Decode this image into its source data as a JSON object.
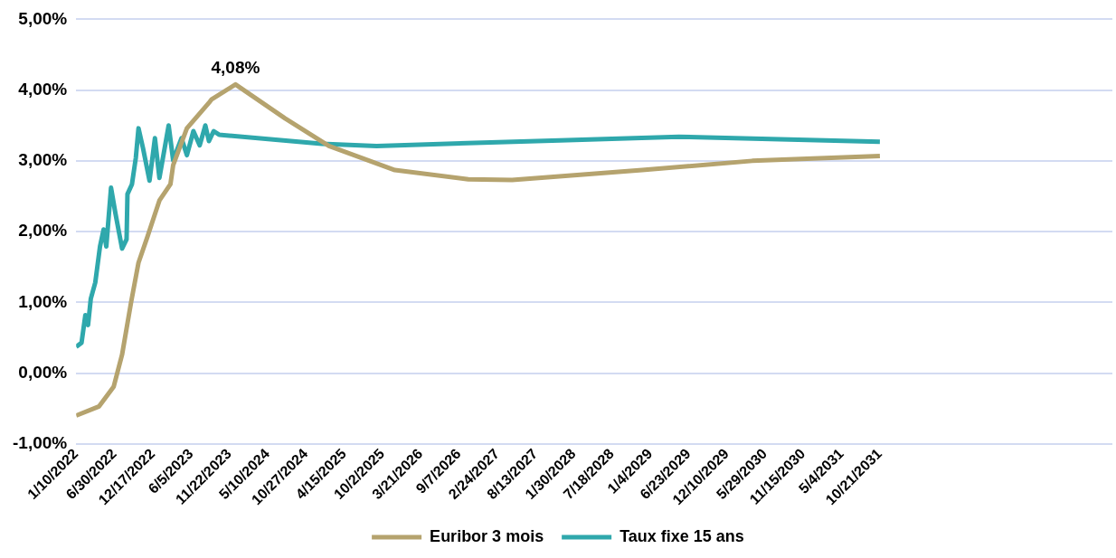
{
  "chart_data": {
    "type": "line",
    "x": [
      "2022-01-10",
      "2022-02-03",
      "2022-02-20",
      "2022-03-04",
      "2022-03-16",
      "2022-04-05",
      "2022-04-26",
      "2022-05-12",
      "2022-05-24",
      "2022-06-14",
      "2022-07-04",
      "2022-08-02",
      "2022-08-22",
      "2022-08-26",
      "2022-09-15",
      "2022-10-02",
      "2022-10-14",
      "2022-11-03",
      "2022-12-02",
      "2022-12-26",
      "2023-01-15",
      "2023-02-25",
      "2023-03-17",
      "2023-04-23",
      "2023-05-17",
      "2023-06-15",
      "2023-07-13",
      "2023-08-07",
      "2023-08-23",
      "2023-09-13",
      "2023-10-07",
      "2025-01-05",
      "2025-09-06",
      "2027-11-29",
      "2029-05-11",
      "2031-10-21"
    ],
    "series": [
      {
        "name": "Euribor 3 mois",
        "color": "#b5a36e",
        "x": [
          "2022-01-10",
          "2022-04-22",
          "2022-06-26",
          "2022-08-02",
          "2022-09-11",
          "2022-10-14",
          "2022-11-23",
          "2023-01-15",
          "2023-03-05",
          "2023-03-17",
          "2023-05-17",
          "2023-08-23",
          "2023-09-04",
          "2023-12-19",
          "2024-07-26",
          "2025-02-06",
          "2025-11-26",
          "2026-10-18",
          "2027-05-01",
          "2028-11-29",
          "2030-04-02",
          "2031-10-21"
        ],
        "values": [
          -0.6,
          -0.47,
          -0.19,
          0.26,
          1.0,
          1.56,
          1.93,
          2.44,
          2.67,
          2.94,
          3.46,
          3.82,
          3.87,
          4.08,
          3.6,
          3.21,
          2.87,
          2.74,
          2.73,
          2.87,
          3.0,
          3.07
        ]
      },
      {
        "name": "Taux fixe 15 ans",
        "color": "#2fa8ac",
        "values": [
          0.37,
          0.43,
          0.82,
          0.68,
          1.05,
          1.28,
          1.79,
          2.03,
          1.79,
          2.62,
          2.25,
          1.76,
          1.89,
          2.53,
          2.67,
          3.04,
          3.46,
          3.18,
          2.72,
          3.32,
          2.76,
          3.5,
          3.01,
          3.32,
          3.08,
          3.42,
          3.22,
          3.5,
          3.28,
          3.42,
          3.37,
          3.24,
          3.21,
          3.29,
          3.34,
          3.27
        ]
      }
    ],
    "annotations": [
      {
        "text": "4,08%",
        "x": "2023-12-19",
        "y": 4.08
      }
    ],
    "xlim": [
      "2022-01-10",
      "2034-08-19"
    ],
    "xticks": [
      {
        "value": "2022-01-10",
        "label": "1/10/2022"
      },
      {
        "value": "2022-06-30",
        "label": "6/30/2022"
      },
      {
        "value": "2022-12-17",
        "label": "12/17/2022"
      },
      {
        "value": "2023-06-05",
        "label": "6/5/2023"
      },
      {
        "value": "2023-11-22",
        "label": "11/22/2023"
      },
      {
        "value": "2024-05-10",
        "label": "5/10/2024"
      },
      {
        "value": "2024-10-27",
        "label": "10/27/2024"
      },
      {
        "value": "2025-04-15",
        "label": "4/15/2025"
      },
      {
        "value": "2025-10-02",
        "label": "10/2/2025"
      },
      {
        "value": "2026-03-21",
        "label": "3/21/2026"
      },
      {
        "value": "2026-09-07",
        "label": "9/7/2026"
      },
      {
        "value": "2027-02-24",
        "label": "2/24/2027"
      },
      {
        "value": "2027-08-13",
        "label": "8/13/2027"
      },
      {
        "value": "2028-01-30",
        "label": "1/30/2028"
      },
      {
        "value": "2028-07-18",
        "label": "7/18/2028"
      },
      {
        "value": "2029-01-04",
        "label": "1/4/2029"
      },
      {
        "value": "2029-06-23",
        "label": "6/23/2029"
      },
      {
        "value": "2029-12-10",
        "label": "12/10/2029"
      },
      {
        "value": "2030-05-29",
        "label": "5/29/2030"
      },
      {
        "value": "2030-11-15",
        "label": "11/15/2030"
      },
      {
        "value": "2031-05-04",
        "label": "5/4/2031"
      },
      {
        "value": "2031-10-21",
        "label": "10/21/2031"
      }
    ],
    "ylim": [
      -1,
      5
    ],
    "yticks": [
      {
        "value": -1,
        "label": "-1,00%"
      },
      {
        "value": 0,
        "label": "0,00%"
      },
      {
        "value": 1,
        "label": "1,00%"
      },
      {
        "value": 2,
        "label": "2,00%"
      },
      {
        "value": 3,
        "label": "3,00%"
      },
      {
        "value": 4,
        "label": "4,00%"
      },
      {
        "value": 5,
        "label": "5,00%"
      }
    ],
    "grid": "y",
    "legend": "bottom",
    "marker": "none",
    "line_style": "solid"
  }
}
